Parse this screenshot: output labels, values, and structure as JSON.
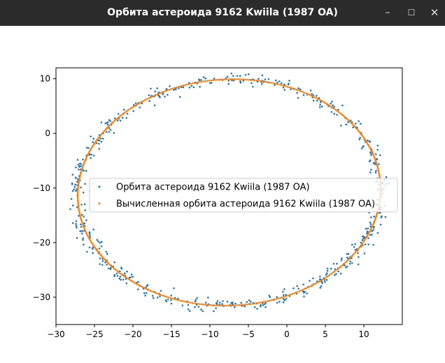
{
  "window": {
    "title": "Орбита астероида 9162 Kwiila (1987 OA)",
    "minimize_glyph": "–",
    "maximize_glyph": "☐",
    "close_glyph": "✕"
  },
  "chart_data": {
    "type": "scatter",
    "xlim": [
      -30,
      15
    ],
    "ylim": [
      -35,
      12
    ],
    "x_ticks": [
      -30,
      -25,
      -20,
      -15,
      -10,
      -5,
      0,
      5,
      10
    ],
    "y_ticks": [
      10,
      0,
      -10,
      -20,
      -30
    ],
    "legend_position": "center-right",
    "grid": false,
    "colors": {
      "observed": "#1f77b4",
      "computed": "#ff7f0e"
    },
    "orbit_model": {
      "center": [
        -7.5,
        -10.8
      ],
      "semi_axis_x": 19.6,
      "semi_axis_y": 20.8,
      "rotation_deg": -14
    },
    "series": [
      {
        "name": "Орбита астероида 9162 Kwiila (1987 OA)",
        "points": 600,
        "scatter_sigma": 0.55
      },
      {
        "name": "Вычисленная орбита астероида 9162 Kwiila (1987 OA)",
        "points": 500
      }
    ]
  }
}
